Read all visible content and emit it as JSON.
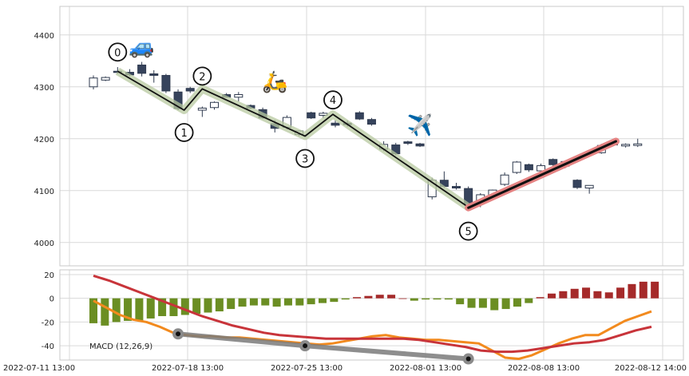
{
  "chart_data": [
    {
      "type": "candlestick",
      "ylim": [
        3955,
        4455
      ],
      "yticks": [
        4000,
        4100,
        4200,
        4300,
        4400
      ],
      "grid": true,
      "candles": [
        {
          "o": 4300,
          "h": 4322,
          "l": 4295,
          "c": 4317
        },
        {
          "o": 4313,
          "h": 4320,
          "l": 4311,
          "c": 4318
        },
        {
          "o": 4330,
          "h": 4338,
          "l": 4325,
          "c": 4328
        },
        {
          "o": 4328,
          "h": 4334,
          "l": 4320,
          "c": 4323
        },
        {
          "o": 4342,
          "h": 4348,
          "l": 4320,
          "c": 4326
        },
        {
          "o": 4325,
          "h": 4332,
          "l": 4308,
          "c": 4322
        },
        {
          "o": 4322,
          "h": 4325,
          "l": 4288,
          "c": 4292
        },
        {
          "o": 4290,
          "h": 4295,
          "l": 4255,
          "c": 4258
        },
        {
          "o": 4297,
          "h": 4300,
          "l": 4288,
          "c": 4292
        },
        {
          "o": 4255,
          "h": 4262,
          "l": 4242,
          "c": 4259
        },
        {
          "o": 4260,
          "h": 4272,
          "l": 4256,
          "c": 4270
        },
        {
          "o": 4285,
          "h": 4288,
          "l": 4279,
          "c": 4280
        },
        {
          "o": 4280,
          "h": 4290,
          "l": 4272,
          "c": 4285
        },
        {
          "o": 4264,
          "h": 4266,
          "l": 4257,
          "c": 4259
        },
        {
          "o": 4256,
          "h": 4260,
          "l": 4238,
          "c": 4240
        },
        {
          "o": 4229,
          "h": 4236,
          "l": 4212,
          "c": 4220
        },
        {
          "o": 4222,
          "h": 4245,
          "l": 4218,
          "c": 4241
        },
        {
          "o": 4208,
          "h": 4216,
          "l": 4205,
          "c": 4215
        },
        {
          "o": 4250,
          "h": 4252,
          "l": 4238,
          "c": 4240
        },
        {
          "o": 4245,
          "h": 4252,
          "l": 4240,
          "c": 4249
        },
        {
          "o": 4230,
          "h": 4235,
          "l": 4222,
          "c": 4226
        },
        {
          "o": 4230,
          "h": 4235,
          "l": 4223,
          "c": 4227
        },
        {
          "o": 4250,
          "h": 4253,
          "l": 4236,
          "c": 4238
        },
        {
          "o": 4237,
          "h": 4240,
          "l": 4225,
          "c": 4228
        },
        {
          "o": 4180,
          "h": 4195,
          "l": 4176,
          "c": 4189
        },
        {
          "o": 4188,
          "h": 4192,
          "l": 4168,
          "c": 4171
        },
        {
          "o": 4194,
          "h": 4196,
          "l": 4188,
          "c": 4191
        },
        {
          "o": 4190,
          "h": 4192,
          "l": 4184,
          "c": 4186
        },
        {
          "o": 4088,
          "h": 4125,
          "l": 4083,
          "c": 4120
        },
        {
          "o": 4120,
          "h": 4137,
          "l": 4105,
          "c": 4108
        },
        {
          "o": 4108,
          "h": 4115,
          "l": 4102,
          "c": 4105
        },
        {
          "o": 4104,
          "h": 4108,
          "l": 4062,
          "c": 4075
        },
        {
          "o": 4075,
          "h": 4095,
          "l": 4068,
          "c": 4092
        },
        {
          "o": 4090,
          "h": 4102,
          "l": 4086,
          "c": 4101
        },
        {
          "o": 4112,
          "h": 4135,
          "l": 4109,
          "c": 4130
        },
        {
          "o": 4135,
          "h": 4157,
          "l": 4132,
          "c": 4155
        },
        {
          "o": 4150,
          "h": 4152,
          "l": 4136,
          "c": 4140
        },
        {
          "o": 4138,
          "h": 4152,
          "l": 4136,
          "c": 4148
        },
        {
          "o": 4160,
          "h": 4162,
          "l": 4147,
          "c": 4150
        },
        {
          "o": 4147,
          "h": 4158,
          "l": 4143,
          "c": 4156
        },
        {
          "o": 4120,
          "h": 4122,
          "l": 4103,
          "c": 4106
        },
        {
          "o": 4105,
          "h": 4108,
          "l": 4094,
          "c": 4110
        },
        {
          "o": 4173,
          "h": 4190,
          "l": 4171,
          "c": 4187
        },
        {
          "o": 4188,
          "h": 4195,
          "l": 4186,
          "c": 4193
        },
        {
          "o": 4186,
          "h": 4191,
          "l": 4183,
          "c": 4189
        },
        {
          "o": 4187,
          "h": 4200,
          "l": 4184,
          "c": 4190
        }
      ],
      "pattern_points": [
        {
          "label": "0",
          "x": 2,
          "y": 4330
        },
        {
          "label": "1",
          "x": 7.5,
          "y": 4255
        },
        {
          "label": "2",
          "x": 9,
          "y": 4296
        },
        {
          "label": "3",
          "x": 17.5,
          "y": 4205
        },
        {
          "label": "4",
          "x": 19.8,
          "y": 4247
        },
        {
          "label": "5",
          "x": 31,
          "y": 4068
        }
      ],
      "trend_line": {
        "from": {
          "x": 31,
          "y": 4067
        },
        "to": {
          "x": 43.2,
          "y": 4195
        }
      },
      "icons": [
        {
          "name": "car",
          "glyph": "🚙",
          "x": 4,
          "y": 4380
        },
        {
          "name": "scooter",
          "glyph": "🛵",
          "x": 15,
          "y": 4312
        },
        {
          "name": "airplane",
          "glyph": "✈️",
          "x": 27,
          "y": 4228
        }
      ]
    },
    {
      "type": "bar",
      "title": "MACD (12,26,9)",
      "ylim": [
        -52,
        24
      ],
      "yticks": [
        -40,
        -20,
        0,
        20
      ],
      "grid": true,
      "xticks": [
        "2022-07-11 13:00",
        "2022-07-18 13:00",
        "2022-07-25 13:00",
        "2022-08-01 13:00",
        "2022-08-08 13:00",
        "2022-08-12 14:00"
      ],
      "histogram": [
        -21,
        -23,
        -20,
        -19,
        -19,
        -17,
        -15,
        -15,
        -14,
        -13,
        -12,
        -11,
        -9,
        -7,
        -6,
        -6,
        -7,
        -6,
        -6,
        -5,
        -4,
        -3,
        -1,
        1,
        2,
        3,
        3,
        0,
        -2,
        -1,
        -1,
        -1,
        -5,
        -8,
        -8,
        -10,
        -9,
        -7,
        -4,
        1,
        4,
        6,
        8,
        9,
        6,
        5,
        9,
        12,
        14,
        14
      ],
      "macd": [
        -2,
        -8,
        -14,
        -18,
        -20,
        -24,
        -29,
        -31,
        -32,
        -32,
        -33,
        -33,
        -34,
        -35,
        -36,
        -37,
        -38,
        -39,
        -38,
        -36,
        -34,
        -32,
        -31,
        -33,
        -34,
        -35,
        -35,
        -36,
        -37,
        -38,
        -44,
        -50,
        -51,
        -48,
        -43,
        -38,
        -34,
        -31,
        -31,
        -25,
        -19,
        -15,
        -11
      ],
      "signal": [
        19,
        15,
        10,
        5,
        0,
        -5,
        -10,
        -15,
        -19,
        -23,
        -26,
        -29,
        -31,
        -32,
        -33,
        -34,
        -34,
        -34,
        -34,
        -34,
        -34,
        -35,
        -37,
        -39,
        -41,
        -44,
        -45,
        -45,
        -44,
        -42,
        -40,
        -38,
        -37,
        -35,
        -31,
        -27,
        -24
      ],
      "pivots": [
        {
          "x": 7,
          "y": -30
        },
        {
          "x": 17.5,
          "y": -40
        },
        {
          "x": 31,
          "y": -51
        }
      ]
    }
  ]
}
